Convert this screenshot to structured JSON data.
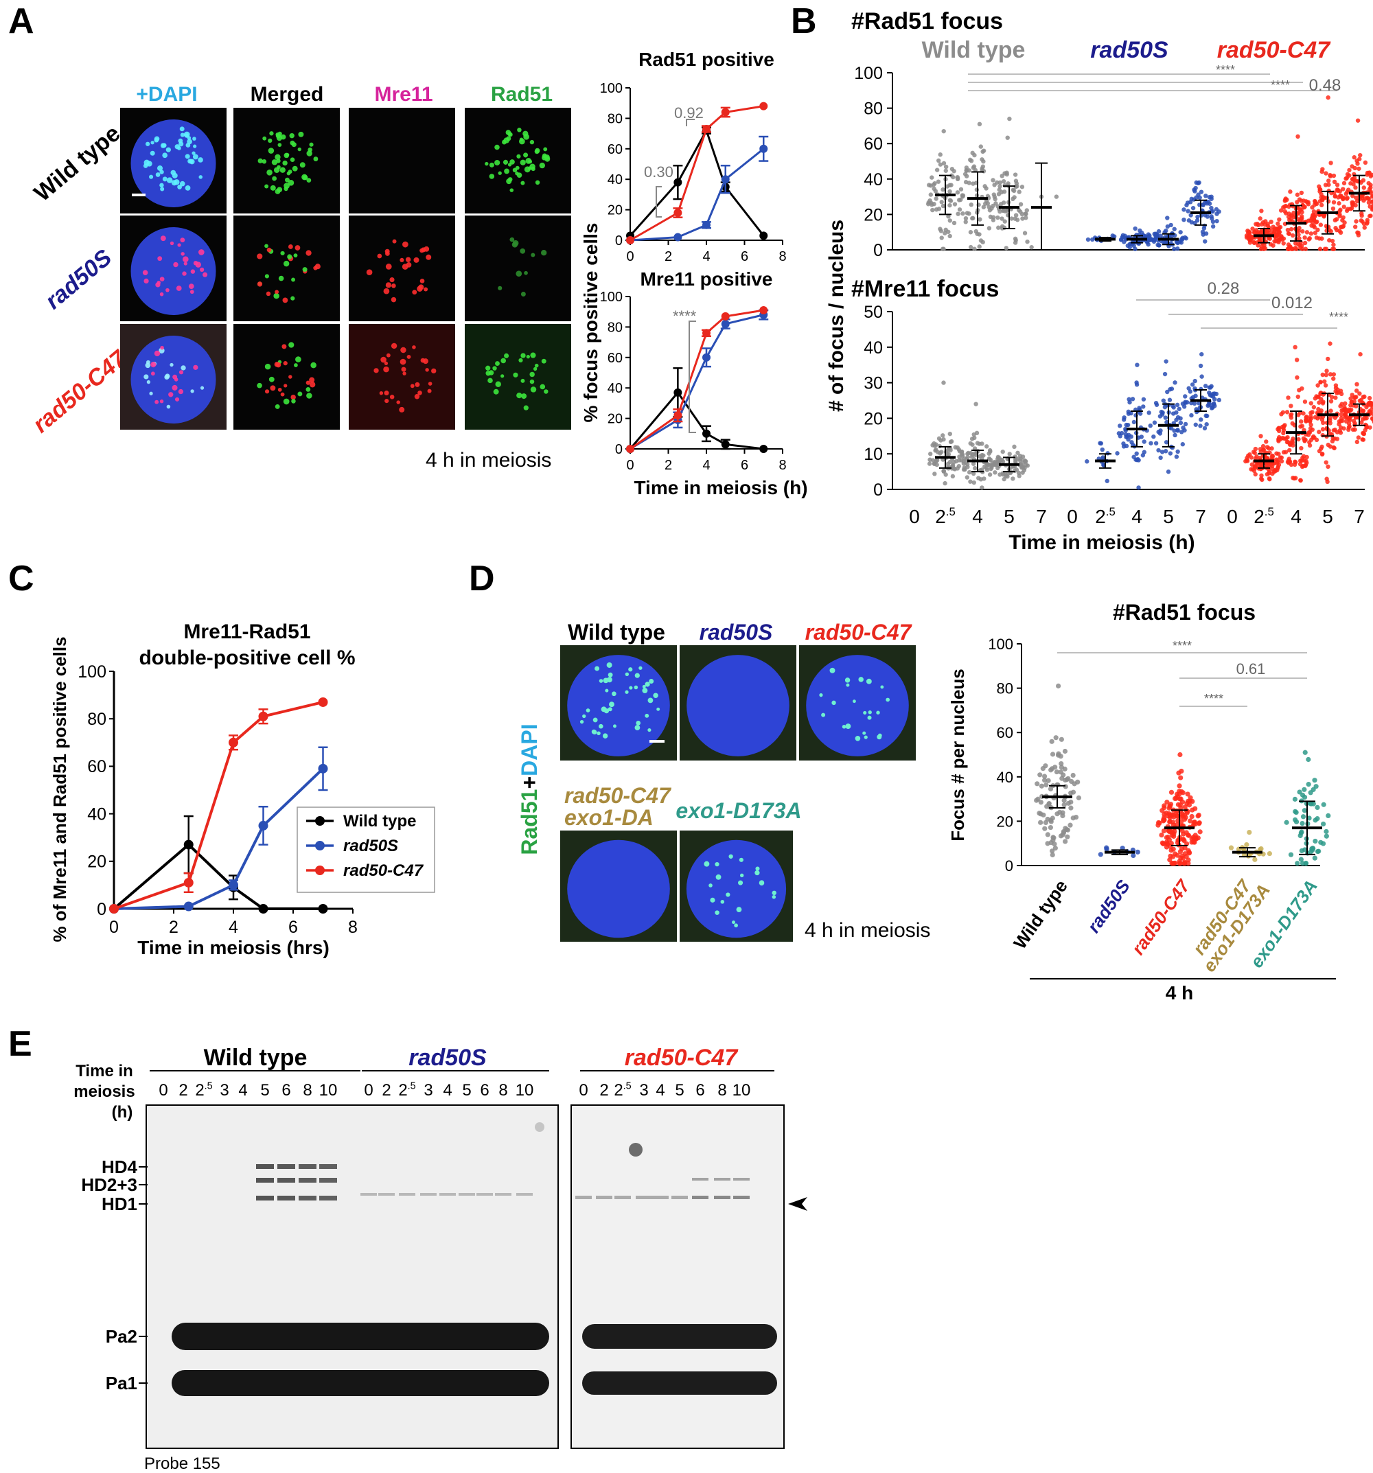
{
  "colors": {
    "wt": "#000000",
    "wt_grey": "#8c8c8c",
    "rad50S": "#2a4fb5",
    "rad50S_label": "#1c1c8c",
    "c47": "#e8281e",
    "c47dot": "#ff2a1a",
    "exoC47": "#c9b25a",
    "exoC47_label": "#a88a3e",
    "exo1": "#2f9a8a",
    "mre11_label": "#d6249c",
    "rad51_label": "#2aa243",
    "dapi_label": "#29a8e0"
  },
  "panelA": {
    "letter": "A",
    "col_labels": [
      "+DAPI",
      "Merged",
      "Mre11",
      "Rad51"
    ],
    "row_labels": [
      "Wild type",
      "rad50S",
      "rad50-C47"
    ],
    "caption": "4 h in meiosis",
    "ylabel": "% focus positive cells",
    "xlabel": "Time in meiosis (h)"
  },
  "panelB": {
    "letter": "B",
    "ylabel": "# of focus / nucleus",
    "xlabel": "Time in meiosis (h)",
    "group_labels": [
      "Wild type",
      "rad50S",
      "rad50-C47"
    ],
    "xticks": [
      "0",
      "2.5",
      "4",
      "5",
      "7",
      "0",
      "2.5",
      "4",
      "5",
      "7",
      "0",
      "2.5",
      "4",
      "5",
      "7"
    ]
  },
  "panelC": {
    "letter": "C"
  },
  "panelD": {
    "letter": "D",
    "image_labels": [
      "Wild type",
      "rad50S",
      "rad50-C47",
      "rad50-C47",
      "exo1-DA",
      "exo1-D173A"
    ],
    "stain_label": [
      "Rad51",
      "+",
      "DAPI"
    ],
    "caption": "4 h in meiosis",
    "bracket_label": "4 h"
  },
  "panelE": {
    "letter": "E",
    "group_labels": [
      "Wild type",
      "rad50S",
      "rad50-C47"
    ],
    "row_label": [
      "Time in",
      "meiosis",
      "(h)"
    ],
    "lanes_wt": [
      "0",
      "2",
      "2.5",
      "3",
      "4",
      "5",
      "6",
      "8",
      "10"
    ],
    "lanes_c47": [
      "0",
      "2",
      "2.5",
      "3",
      "4",
      "5",
      "6",
      "8",
      "10"
    ],
    "band_labels": [
      "HD4",
      "HD2+3",
      "HD1",
      "Pa2",
      "Pa1"
    ],
    "probe": "Probe 155"
  },
  "chart_data": [
    {
      "type": "line",
      "title": "Rad51 positive",
      "xlabel": "Time in meiosis (h)",
      "ylabel": "% focus positive cells",
      "xlim": [
        0,
        8
      ],
      "ylim": [
        0,
        100
      ],
      "xticks": [
        0,
        2,
        4,
        6,
        8
      ],
      "yticks": [
        0,
        20,
        40,
        60,
        80,
        100
      ],
      "series": [
        {
          "color": "#000000",
          "x": [
            0,
            2.5,
            4,
            5,
            7
          ],
          "y": [
            3,
            38,
            72,
            35,
            3
          ],
          "err": [
            0,
            11,
            2,
            3,
            0
          ]
        },
        {
          "color": "#2a4fb5",
          "x": [
            0,
            2.5,
            4,
            5,
            7
          ],
          "y": [
            0,
            2,
            10,
            40,
            60
          ],
          "err": [
            0,
            0,
            2,
            9,
            8
          ]
        },
        {
          "color": "#e8281e",
          "x": [
            0,
            2.5,
            4,
            5,
            7
          ],
          "y": [
            0,
            18,
            73,
            84,
            88
          ],
          "err": [
            0,
            3,
            2,
            3,
            0
          ]
        }
      ],
      "annotations": [
        "0.30",
        "0.92"
      ]
    },
    {
      "type": "line",
      "title": "Mre11 positive",
      "xlabel": "Time in meiosis (h)",
      "ylabel": "% focus positive cells",
      "xlim": [
        0,
        8
      ],
      "ylim": [
        0,
        100
      ],
      "xticks": [
        0,
        2,
        4,
        6,
        8
      ],
      "yticks": [
        0,
        20,
        40,
        60,
        80,
        100
      ],
      "series": [
        {
          "color": "#000000",
          "x": [
            0,
            2.5,
            4,
            5,
            7
          ],
          "y": [
            0,
            37,
            10,
            3,
            0
          ],
          "err": [
            0,
            16,
            5,
            3,
            0
          ]
        },
        {
          "color": "#2a4fb5",
          "x": [
            0,
            2.5,
            4,
            5,
            7
          ],
          "y": [
            0,
            19,
            60,
            82,
            88
          ],
          "err": [
            0,
            5,
            6,
            3,
            3
          ]
        },
        {
          "color": "#e8281e",
          "x": [
            0,
            2.5,
            4,
            5,
            7
          ],
          "y": [
            0,
            22,
            76,
            87,
            91
          ],
          "err": [
            0,
            4,
            2,
            0,
            0
          ]
        }
      ],
      "annotations": [
        "****"
      ]
    },
    {
      "type": "scatter",
      "title": "#Rad51 focus",
      "ylabel": "# of focus / nucleus",
      "ylim": [
        0,
        100
      ],
      "yticks": [
        0,
        20,
        40,
        60,
        80,
        100
      ],
      "groups": [
        {
          "name": "Wild type",
          "x": [
            "2.5",
            "4",
            "5",
            "7"
          ],
          "median": [
            31,
            29,
            24,
            24
          ],
          "sd": [
            11,
            15,
            12,
            25
          ],
          "max": [
            67,
            71,
            74,
            30
          ]
        },
        {
          "name": "rad50S",
          "x": [
            "2.5",
            "4",
            "5",
            "7"
          ],
          "median": [
            6,
            6,
            6,
            21
          ],
          "sd": [
            1,
            2,
            3,
            7
          ],
          "max": [
            8,
            12,
            18,
            38
          ]
        },
        {
          "name": "rad50-C47",
          "x": [
            "2.5",
            "4",
            "5",
            "7"
          ],
          "median": [
            8,
            15,
            21,
            32
          ],
          "sd": [
            4,
            10,
            12,
            10
          ],
          "max": [
            22,
            64,
            86,
            73
          ]
        }
      ],
      "annotations": [
        "****",
        "****",
        "0.48"
      ]
    },
    {
      "type": "scatter",
      "title": "#Mre11 focus",
      "xlabel": "Time in meiosis (h)",
      "ylabel": "# of focus / nucleus",
      "ylim": [
        0,
        50
      ],
      "yticks": [
        0,
        10,
        20,
        30,
        40,
        50
      ],
      "groups": [
        {
          "name": "Wild type",
          "x": [
            "2.5",
            "4",
            "5"
          ],
          "median": [
            9,
            8,
            7
          ],
          "sd": [
            3,
            3,
            2
          ],
          "max": [
            30,
            24,
            12
          ]
        },
        {
          "name": "rad50S",
          "x": [
            "2.5",
            "4",
            "5",
            "7"
          ],
          "median": [
            8,
            17,
            18,
            25
          ],
          "sd": [
            2,
            5,
            6,
            3
          ],
          "max": [
            13,
            35,
            36,
            38
          ]
        },
        {
          "name": "rad50-C47",
          "x": [
            "2.5",
            "4",
            "5",
            "7"
          ],
          "median": [
            8,
            16,
            21,
            21
          ],
          "sd": [
            2,
            6,
            6,
            3
          ],
          "max": [
            15,
            40,
            41,
            38
          ]
        }
      ],
      "annotations": [
        "0.28",
        "0.012",
        "****"
      ]
    },
    {
      "type": "line",
      "title": "Mre11-Rad51 double-positive cell %",
      "xlabel": "Time in meiosis (hrs)",
      "ylabel": "% of Mre11 and Rad51 positive cells",
      "xlim": [
        0,
        8
      ],
      "ylim": [
        0,
        100
      ],
      "xticks": [
        0,
        2,
        4,
        6,
        8
      ],
      "yticks": [
        0,
        20,
        40,
        60,
        80,
        100
      ],
      "legend": "right",
      "series": [
        {
          "name": "Wild type",
          "color": "#000000",
          "x": [
            0,
            2.5,
            4,
            5,
            7
          ],
          "y": [
            0,
            27,
            9,
            0,
            0
          ],
          "err": [
            0,
            12,
            5,
            0,
            0
          ]
        },
        {
          "name": "rad50S",
          "color": "#2a4fb5",
          "x": [
            0,
            2.5,
            4,
            5,
            7
          ],
          "y": [
            0,
            1,
            10,
            35,
            59
          ],
          "err": [
            0,
            0,
            2,
            8,
            9
          ]
        },
        {
          "name": "rad50-C47",
          "color": "#e8281e",
          "x": [
            0,
            2.5,
            4,
            5,
            7
          ],
          "y": [
            0,
            11,
            70,
            81,
            87
          ],
          "err": [
            0,
            4,
            3,
            3,
            0
          ]
        }
      ]
    },
    {
      "type": "scatter",
      "title": "#Rad51 focus",
      "ylabel": "Focus # per nucleus",
      "ylim": [
        0,
        100
      ],
      "yticks": [
        0,
        20,
        40,
        60,
        80,
        100
      ],
      "categories": [
        "Wild type",
        "rad50S",
        "rad50-C47",
        "rad50-C47 exo1-D173A",
        "exo1-D173A"
      ],
      "median": [
        31,
        6,
        17,
        6,
        17
      ],
      "sd": [
        5,
        1,
        8,
        2,
        12
      ],
      "max": [
        81,
        8,
        50,
        15,
        51
      ],
      "annotations": [
        "****",
        "0.61",
        "****"
      ]
    }
  ]
}
